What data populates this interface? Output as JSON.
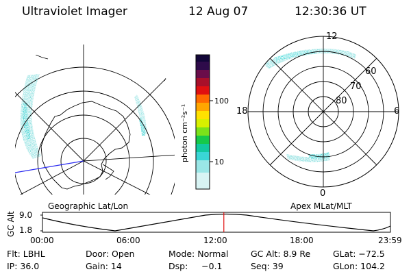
{
  "header": {
    "instrument": "Ultraviolet Imager",
    "date": "12 Aug 07",
    "time": "12:30:36 UT"
  },
  "colorbar": {
    "unit_label": "photon cm⁻²s⁻¹",
    "ticks": [
      "100",
      "10"
    ],
    "colors": [
      "#120638",
      "#2e0b4a",
      "#6a0d4a",
      "#a8102a",
      "#e01010",
      "#ff6a00",
      "#ffa600",
      "#ffe100",
      "#d8f000",
      "#7be21a",
      "#16c94a",
      "#12c9a0",
      "#3ad6d6",
      "#9ae6e6",
      "#d8f4f4"
    ]
  },
  "left_map": {
    "caption": "Geographic Lat/Lon",
    "projection": "geographic"
  },
  "right_map": {
    "caption": "Apex MLat/MLT",
    "mlt_labels": {
      "top": "12",
      "bottom": "0",
      "left": "18",
      "right": "6"
    },
    "lat_labels": [
      "60",
      "70",
      "80"
    ]
  },
  "altitude_plot": {
    "ylabel": "GC Alt",
    "y_ticks": [
      "9.0",
      "1.8"
    ],
    "x_ticks": [
      "00:00",
      "06:00",
      "12:00",
      "18:00",
      "23:59"
    ],
    "current_time_fraction": 0.5212
  },
  "status": {
    "row1": {
      "flt": "Flt: LBHL",
      "door": "Door: Open",
      "mode": "Mode: Normal",
      "gcalt": "GC Alt: 8.9 Re",
      "glat": "GLat: −72.5"
    },
    "row2": {
      "ip": "IP: 36.0",
      "gain": "Gain: 14",
      "dsp": "Dsp:     −0.1",
      "seq": "Seq: 39",
      "glon": "GLon: 104.2"
    }
  }
}
